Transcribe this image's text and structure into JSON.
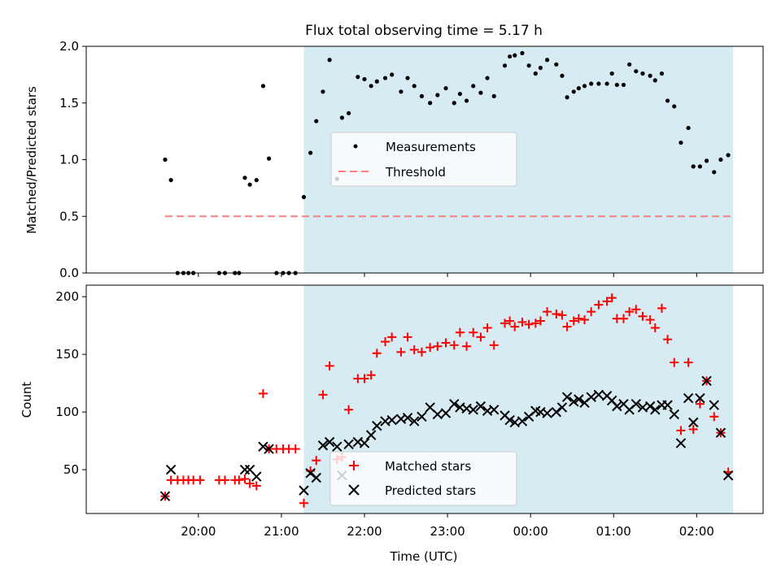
{
  "title": "Flux total observing time = 5.17 h",
  "chart_data": [
    {
      "type": "scatter",
      "ylabel": "Matched/Predicted stars",
      "xlabel": "",
      "ylim": [
        0,
        2.0
      ],
      "yticks": [
        "0.0",
        "0.5",
        "1.0",
        "1.5",
        "2.0"
      ],
      "x_unit": "hours since 19:00 UTC",
      "shaded_region": {
        "x_start": 2.27,
        "x_end": 7.44,
        "color": "#add8e6"
      },
      "legend": {
        "position": "center",
        "entries": [
          "Measurements",
          "Threshold"
        ]
      },
      "threshold": {
        "name": "Threshold",
        "value": 0.5,
        "x_start": 0.6,
        "x_end": 7.44,
        "color": "#ff7f7f",
        "style": "dashed"
      },
      "series": [
        {
          "name": "Measurements",
          "color": "#000000",
          "marker": "dot",
          "points": [
            [
              0.6,
              1.0
            ],
            [
              0.67,
              0.82
            ],
            [
              0.75,
              0.0
            ],
            [
              0.82,
              0.0
            ],
            [
              0.88,
              0.0
            ],
            [
              0.94,
              0.0
            ],
            [
              1.25,
              0.0
            ],
            [
              1.32,
              0.0
            ],
            [
              1.44,
              0.0
            ],
            [
              1.49,
              0.0
            ],
            [
              1.56,
              0.84
            ],
            [
              1.62,
              0.78
            ],
            [
              1.7,
              0.82
            ],
            [
              1.78,
              1.65
            ],
            [
              1.85,
              1.01
            ],
            [
              1.94,
              0.0
            ],
            [
              2.02,
              0.0
            ],
            [
              2.09,
              0.0
            ],
            [
              2.17,
              0.0
            ],
            [
              2.27,
              0.67
            ],
            [
              2.35,
              1.06
            ],
            [
              2.42,
              1.34
            ],
            [
              2.5,
              1.6
            ],
            [
              2.58,
              1.88
            ],
            [
              2.67,
              0.83
            ],
            [
              2.73,
              1.37
            ],
            [
              2.81,
              1.41
            ],
            [
              2.92,
              1.73
            ],
            [
              3.0,
              1.71
            ],
            [
              3.08,
              1.65
            ],
            [
              3.15,
              1.69
            ],
            [
              3.25,
              1.72
            ],
            [
              3.33,
              1.75
            ],
            [
              3.44,
              1.6
            ],
            [
              3.52,
              1.72
            ],
            [
              3.6,
              1.65
            ],
            [
              3.69,
              1.56
            ],
            [
              3.79,
              1.5
            ],
            [
              3.88,
              1.57
            ],
            [
              3.98,
              1.63
            ],
            [
              4.08,
              1.5
            ],
            [
              4.15,
              1.58
            ],
            [
              4.23,
              1.52
            ],
            [
              4.31,
              1.65
            ],
            [
              4.4,
              1.59
            ],
            [
              4.48,
              1.72
            ],
            [
              4.56,
              1.56
            ],
            [
              4.69,
              1.83
            ],
            [
              4.75,
              1.91
            ],
            [
              4.81,
              1.92
            ],
            [
              4.9,
              1.94
            ],
            [
              4.98,
              1.83
            ],
            [
              5.06,
              1.76
            ],
            [
              5.12,
              1.81
            ],
            [
              5.2,
              1.88
            ],
            [
              5.31,
              1.84
            ],
            [
              5.38,
              1.74
            ],
            [
              5.44,
              1.55
            ],
            [
              5.52,
              1.6
            ],
            [
              5.58,
              1.63
            ],
            [
              5.65,
              1.65
            ],
            [
              5.73,
              1.67
            ],
            [
              5.82,
              1.67
            ],
            [
              5.92,
              1.67
            ],
            [
              5.98,
              1.76
            ],
            [
              6.04,
              1.66
            ],
            [
              6.12,
              1.66
            ],
            [
              6.19,
              1.84
            ],
            [
              6.27,
              1.78
            ],
            [
              6.35,
              1.76
            ],
            [
              6.44,
              1.74
            ],
            [
              6.5,
              1.7
            ],
            [
              6.58,
              1.76
            ],
            [
              6.65,
              1.52
            ],
            [
              6.73,
              1.47
            ],
            [
              6.81,
              1.15
            ],
            [
              6.9,
              1.28
            ],
            [
              6.96,
              0.94
            ],
            [
              7.04,
              0.94
            ],
            [
              7.12,
              0.99
            ],
            [
              7.21,
              0.89
            ],
            [
              7.29,
              1.0
            ],
            [
              7.38,
              1.04
            ]
          ]
        }
      ]
    },
    {
      "type": "scatter",
      "ylabel": "Count",
      "xlabel": "Time (UTC)",
      "ylim": [
        12,
        210
      ],
      "yticks": [
        "50",
        "100",
        "150",
        "200"
      ],
      "xlim": [
        -0.35,
        7.8
      ],
      "xticks": [
        "20:00",
        "21:00",
        "22:00",
        "23:00",
        "00:00",
        "01:00",
        "02:00"
      ],
      "x_unit": "hours since 19:00 UTC",
      "shaded_region": {
        "x_start": 2.27,
        "x_end": 7.44,
        "color": "#add8e6"
      },
      "legend": {
        "position": "bottom-center",
        "entries": [
          "Matched stars",
          "Predicted stars"
        ]
      },
      "series": [
        {
          "name": "Matched stars",
          "color": "#ff0000",
          "marker": "plus",
          "points": [
            [
              0.6,
              27
            ],
            [
              0.67,
              41
            ],
            [
              0.75,
              41
            ],
            [
              0.82,
              41
            ],
            [
              0.88,
              41
            ],
            [
              0.94,
              41
            ],
            [
              1.02,
              41
            ],
            [
              1.25,
              41
            ],
            [
              1.32,
              41
            ],
            [
              1.44,
              41
            ],
            [
              1.49,
              41
            ],
            [
              1.56,
              42
            ],
            [
              1.62,
              38
            ],
            [
              1.7,
              36
            ],
            [
              1.78,
              116
            ],
            [
              1.85,
              68
            ],
            [
              1.94,
              68
            ],
            [
              2.02,
              68
            ],
            [
              2.09,
              68
            ],
            [
              2.17,
              68
            ],
            [
              2.27,
              21
            ],
            [
              2.35,
              49
            ],
            [
              2.42,
              58
            ],
            [
              2.5,
              115
            ],
            [
              2.58,
              140
            ],
            [
              2.67,
              59
            ],
            [
              2.73,
              61
            ],
            [
              2.81,
              102
            ],
            [
              2.92,
              129
            ],
            [
              3.0,
              129
            ],
            [
              3.08,
              132
            ],
            [
              3.15,
              151
            ],
            [
              3.25,
              161
            ],
            [
              3.33,
              165
            ],
            [
              3.44,
              152
            ],
            [
              3.52,
              165
            ],
            [
              3.6,
              154
            ],
            [
              3.69,
              152
            ],
            [
              3.79,
              156
            ],
            [
              3.88,
              157
            ],
            [
              3.98,
              160
            ],
            [
              4.08,
              158
            ],
            [
              4.15,
              169
            ],
            [
              4.23,
              157
            ],
            [
              4.31,
              169
            ],
            [
              4.4,
              165
            ],
            [
              4.48,
              173
            ],
            [
              4.56,
              158
            ],
            [
              4.69,
              177
            ],
            [
              4.75,
              179
            ],
            [
              4.81,
              174
            ],
            [
              4.9,
              178
            ],
            [
              4.98,
              176
            ],
            [
              5.06,
              177
            ],
            [
              5.12,
              179
            ],
            [
              5.2,
              187
            ],
            [
              5.31,
              185
            ],
            [
              5.38,
              184
            ],
            [
              5.44,
              174
            ],
            [
              5.52,
              179
            ],
            [
              5.58,
              181
            ],
            [
              5.65,
              180
            ],
            [
              5.73,
              187
            ],
            [
              5.82,
              193
            ],
            [
              5.92,
              196
            ],
            [
              5.98,
              199
            ],
            [
              6.04,
              181
            ],
            [
              6.12,
              181
            ],
            [
              6.19,
              187
            ],
            [
              6.27,
              189
            ],
            [
              6.35,
              183
            ],
            [
              6.44,
              180
            ],
            [
              6.5,
              173
            ],
            [
              6.58,
              190
            ],
            [
              6.65,
              163
            ],
            [
              6.73,
              143
            ],
            [
              6.81,
              84
            ],
            [
              6.9,
              143
            ],
            [
              6.96,
              85
            ],
            [
              7.04,
              107
            ],
            [
              7.12,
              127
            ],
            [
              7.21,
              96
            ],
            [
              7.29,
              82
            ],
            [
              7.38,
              48
            ]
          ]
        },
        {
          "name": "Predicted stars",
          "color": "#000000",
          "marker": "x",
          "points": [
            [
              0.6,
              27
            ],
            [
              0.67,
              50
            ],
            [
              1.56,
              50
            ],
            [
              1.62,
              50
            ],
            [
              1.7,
              44
            ],
            [
              1.78,
              70
            ],
            [
              1.85,
              68
            ],
            [
              2.27,
              32
            ],
            [
              2.35,
              47
            ],
            [
              2.42,
              43
            ],
            [
              2.5,
              71
            ],
            [
              2.58,
              74
            ],
            [
              2.67,
              70
            ],
            [
              2.73,
              45
            ],
            [
              2.81,
              72
            ],
            [
              2.92,
              74
            ],
            [
              3.0,
              73
            ],
            [
              3.08,
              80
            ],
            [
              3.15,
              88
            ],
            [
              3.25,
              92
            ],
            [
              3.33,
              93
            ],
            [
              3.44,
              94
            ],
            [
              3.52,
              95
            ],
            [
              3.6,
              92
            ],
            [
              3.69,
              96
            ],
            [
              3.79,
              104
            ],
            [
              3.88,
              98
            ],
            [
              3.98,
              99
            ],
            [
              4.08,
              107
            ],
            [
              4.15,
              104
            ],
            [
              4.23,
              103
            ],
            [
              4.31,
              102
            ],
            [
              4.4,
              105
            ],
            [
              4.48,
              101
            ],
            [
              4.56,
              102
            ],
            [
              4.69,
              97
            ],
            [
              4.75,
              93
            ],
            [
              4.81,
              91
            ],
            [
              4.9,
              92
            ],
            [
              4.98,
              96
            ],
            [
              5.06,
              101
            ],
            [
              5.12,
              100
            ],
            [
              5.2,
              99
            ],
            [
              5.31,
              100
            ],
            [
              5.38,
              104
            ],
            [
              5.44,
              113
            ],
            [
              5.52,
              109
            ],
            [
              5.58,
              111
            ],
            [
              5.65,
              108
            ],
            [
              5.73,
              113
            ],
            [
              5.82,
              115
            ],
            [
              5.92,
              114
            ],
            [
              5.98,
              110
            ],
            [
              6.04,
              105
            ],
            [
              6.12,
              107
            ],
            [
              6.19,
              102
            ],
            [
              6.27,
              107
            ],
            [
              6.35,
              104
            ],
            [
              6.44,
              105
            ],
            [
              6.5,
              102
            ],
            [
              6.58,
              106
            ],
            [
              6.65,
              106
            ],
            [
              6.73,
              98
            ],
            [
              6.81,
              73
            ],
            [
              6.9,
              112
            ],
            [
              6.96,
              91
            ],
            [
              7.04,
              112
            ],
            [
              7.12,
              127
            ],
            [
              7.21,
              106
            ],
            [
              7.29,
              82
            ],
            [
              7.38,
              45
            ]
          ]
        }
      ]
    }
  ]
}
